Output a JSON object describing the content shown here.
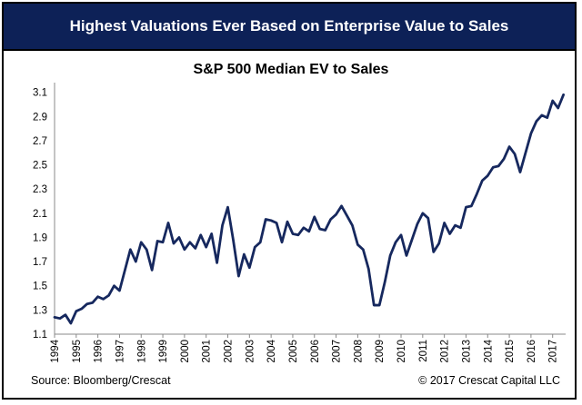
{
  "banner": {
    "title": "Highest Valuations Ever Based on Enterprise Value to Sales"
  },
  "footer": {
    "source": "Source: Bloomberg/Crescat",
    "copyright": "© 2017 Crescat Capital LLC"
  },
  "colors": {
    "banner_bg": "#0d2157",
    "line": "#16285e"
  },
  "chart_data": {
    "type": "line",
    "title": "S&P 500 Median EV to Sales",
    "xlabel": "",
    "ylabel": "",
    "xlim": [
      1994,
      2017.6
    ],
    "ylim": [
      1.1,
      3.15
    ],
    "x_ticks": [
      "1994",
      "1995",
      "1996",
      "1997",
      "1998",
      "1999",
      "2000",
      "2001",
      "2002",
      "2003",
      "2004",
      "2005",
      "2006",
      "2007",
      "2008",
      "2009",
      "2010",
      "2011",
      "2012",
      "2013",
      "2014",
      "2015",
      "2016",
      "2017"
    ],
    "y_ticks": [
      "1.1",
      "1.3",
      "1.5",
      "1.7",
      "1.9",
      "2.1",
      "2.3",
      "2.5",
      "2.7",
      "2.9",
      "3.1"
    ],
    "grid": false,
    "legend": "none",
    "series": [
      {
        "x": [
          1994.0,
          1994.25,
          1994.5,
          1994.75,
          1995.0,
          1995.25,
          1995.5,
          1995.75,
          1996.0,
          1996.25,
          1996.5,
          1996.75,
          1997.0,
          1997.25,
          1997.5,
          1997.75,
          1998.0,
          1998.25,
          1998.5,
          1998.75,
          1999.0,
          1999.25,
          1999.5,
          1999.75,
          2000.0,
          2000.25,
          2000.5,
          2000.75,
          2001.0,
          2001.25,
          2001.5,
          2001.75,
          2002.0,
          2002.25,
          2002.5,
          2002.75,
          2003.0,
          2003.25,
          2003.5,
          2003.75,
          2004.0,
          2004.25,
          2004.5,
          2004.75,
          2005.0,
          2005.25,
          2005.5,
          2005.75,
          2006.0,
          2006.25,
          2006.5,
          2006.75,
          2007.0,
          2007.25,
          2007.5,
          2007.75,
          2008.0,
          2008.25,
          2008.5,
          2008.75,
          2009.0,
          2009.25,
          2009.5,
          2009.75,
          2010.0,
          2010.25,
          2010.5,
          2010.75,
          2011.0,
          2011.25,
          2011.5,
          2011.75,
          2012.0,
          2012.25,
          2012.5,
          2012.75,
          2013.0,
          2013.25,
          2013.5,
          2013.75,
          2014.0,
          2014.25,
          2014.5,
          2014.75,
          2015.0,
          2015.25,
          2015.5,
          2015.75,
          2016.0,
          2016.25,
          2016.5,
          2016.75,
          2017.0,
          2017.25,
          2017.5
        ],
        "values": [
          1.24,
          1.23,
          1.26,
          1.19,
          1.29,
          1.31,
          1.35,
          1.36,
          1.41,
          1.39,
          1.42,
          1.5,
          1.46,
          1.63,
          1.8,
          1.7,
          1.86,
          1.8,
          1.63,
          1.87,
          1.86,
          2.02,
          1.85,
          1.9,
          1.8,
          1.86,
          1.81,
          1.92,
          1.82,
          1.93,
          1.69,
          2.0,
          2.15,
          1.88,
          1.58,
          1.76,
          1.65,
          1.82,
          1.86,
          2.05,
          2.04,
          2.02,
          1.86,
          2.03,
          1.93,
          1.92,
          1.98,
          1.95,
          2.07,
          1.97,
          1.96,
          2.05,
          2.09,
          2.16,
          2.08,
          2.0,
          1.84,
          1.8,
          1.64,
          1.34,
          1.34,
          1.53,
          1.75,
          1.86,
          1.92,
          1.75,
          1.88,
          2.01,
          2.1,
          2.06,
          1.78,
          1.85,
          2.02,
          1.93,
          2.0,
          1.98,
          2.15,
          2.16,
          2.26,
          2.37,
          2.41,
          2.48,
          2.49,
          2.55,
          2.65,
          2.59,
          2.44,
          2.6,
          2.76,
          2.86,
          2.91,
          2.89,
          3.03,
          2.97,
          3.08
        ]
      }
    ]
  }
}
